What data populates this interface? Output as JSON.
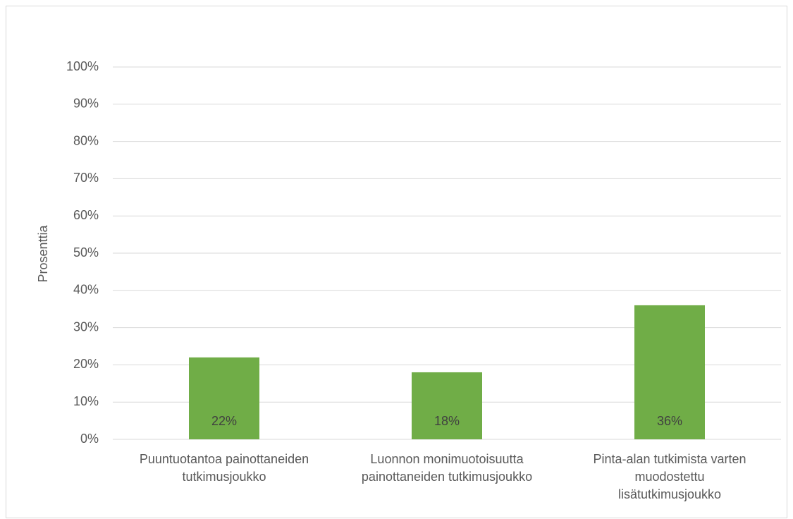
{
  "chart_data": {
    "type": "bar",
    "y_label": "Prosenttia",
    "categories": [
      "Puuntuotantoa painottaneiden\ntutkimusjoukko",
      "Luonnon monimuotoisuutta\npainottaneiden tutkimusjoukko",
      "Pinta-alan tutkimista varten\nmuodostettu\nlisätutkimusjoukko"
    ],
    "values": [
      22,
      18,
      36
    ],
    "value_labels": [
      "22%",
      "18%",
      "36%"
    ],
    "color": "#70ad47",
    "ylim": [
      0,
      100
    ],
    "yticks": [
      {
        "value": 0,
        "label": "0%"
      },
      {
        "value": 10,
        "label": "10%"
      },
      {
        "value": 20,
        "label": "20%"
      },
      {
        "value": 30,
        "label": "30%"
      },
      {
        "value": 40,
        "label": "40%"
      },
      {
        "value": 50,
        "label": "50%"
      },
      {
        "value": 60,
        "label": "60%"
      },
      {
        "value": 70,
        "label": "70%"
      },
      {
        "value": 80,
        "label": "80%"
      },
      {
        "value": 90,
        "label": "90%"
      },
      {
        "value": 100,
        "label": "100%"
      }
    ],
    "grid": true
  }
}
